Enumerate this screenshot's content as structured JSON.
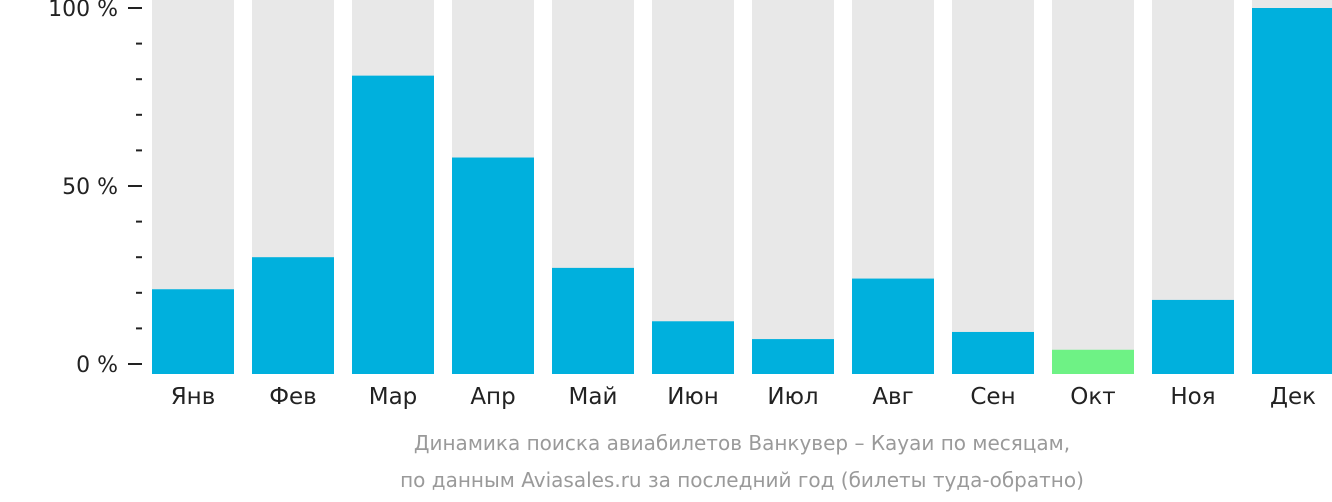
{
  "chart_data": {
    "type": "bar",
    "categories": [
      "Янв",
      "Фев",
      "Мар",
      "Апр",
      "Май",
      "Июн",
      "Июл",
      "Авг",
      "Сен",
      "Окт",
      "Ноя",
      "Дек"
    ],
    "values": [
      21,
      30,
      81,
      58,
      27,
      12,
      7,
      24,
      9,
      4,
      18,
      100
    ],
    "highlight_index": 9,
    "ylim": [
      0,
      100
    ],
    "y_ticks": [
      {
        "value": 0,
        "label": "0 %"
      },
      {
        "value": 50,
        "label": "50 %"
      },
      {
        "value": 100,
        "label": "100 %"
      }
    ],
    "minor_tick_step": 10,
    "colors": {
      "bar": "#00b0dd",
      "highlight": "#6ef285",
      "track": "#e8e8e8",
      "axis": "#222222"
    }
  },
  "caption": {
    "line1": "Динамика поиска авиабилетов Ванкувер – Кауаи по месяцам,",
    "line2": "по данным Aviasales.ru за последний год (билеты туда-обратно)"
  }
}
